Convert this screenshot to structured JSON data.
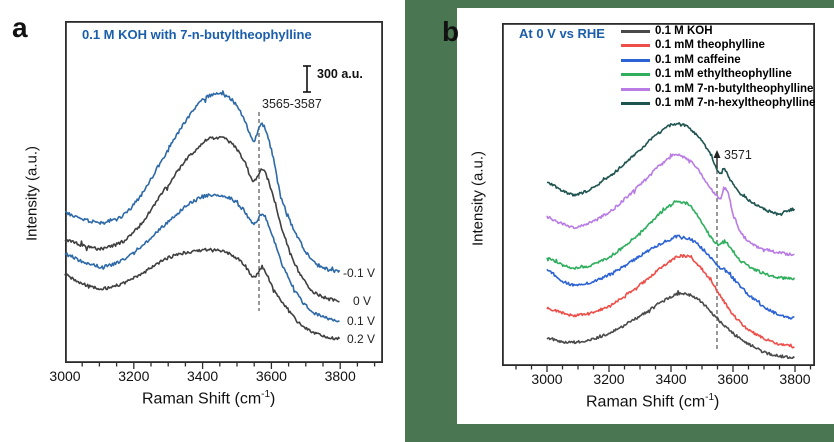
{
  "page": {
    "background": "#ffffff",
    "green_background": "#4a7751",
    "accent_blue": "#1b5eaa",
    "axis_color": "#2b2b2b"
  },
  "chart_data": [
    {
      "type": "line",
      "panel_label": "a",
      "title": "0.1 M KOH with 7-n-butyltheophylline",
      "xlabel_main": "Raman Shift (cm",
      "xlabel_sup": "-1",
      "xlabel_end": ")",
      "ylabel": "Intensity (a.u.)",
      "x_ticks": [
        "3000",
        "3200",
        "3400",
        "3600",
        "3800"
      ],
      "x_range_shown": [
        3000,
        3925
      ],
      "grid": "off",
      "scale_bar": {
        "label": "300 a.u."
      },
      "annotation": {
        "text": "3565-3587",
        "x_position_cm1": 3565
      },
      "note": "y-values are pixel offsets inside plot box (stacked spectra, arbitrary units)",
      "series": [
        {
          "name": "0.2 V",
          "color": "#3f3f3f",
          "noise": 1.5,
          "points": [
            [
              3000,
              254
            ],
            [
              3060,
              264
            ],
            [
              3120,
              267
            ],
            [
              3200,
              257
            ],
            [
              3300,
              237
            ],
            [
              3380,
              230
            ],
            [
              3430,
              229
            ],
            [
              3480,
              233
            ],
            [
              3520,
              243
            ],
            [
              3548,
              256
            ],
            [
              3575,
              247
            ],
            [
              3600,
              264
            ],
            [
              3630,
              281
            ],
            [
              3680,
              302
            ],
            [
              3730,
              313
            ],
            [
              3800,
              318
            ]
          ]
        },
        {
          "name": "0.1 V",
          "color": "#2e6aa8",
          "noise": 1.6,
          "points": [
            [
              3000,
              233
            ],
            [
              3060,
              242
            ],
            [
              3120,
              245
            ],
            [
              3200,
              231
            ],
            [
              3300,
              201
            ],
            [
              3380,
              179
            ],
            [
              3430,
              174
            ],
            [
              3480,
              177
            ],
            [
              3520,
              189
            ],
            [
              3548,
              203
            ],
            [
              3575,
              193
            ],
            [
              3600,
              213
            ],
            [
              3630,
              243
            ],
            [
              3680,
              276
            ],
            [
              3730,
              293
            ],
            [
              3800,
              300
            ]
          ]
        },
        {
          "name": "0 V",
          "color": "#3f3f3f",
          "noise": 1.7,
          "points": [
            [
              3000,
              219
            ],
            [
              3060,
              225
            ],
            [
              3120,
              227
            ],
            [
              3200,
              211
            ],
            [
              3300,
              164
            ],
            [
              3380,
              129
            ],
            [
              3430,
              117
            ],
            [
              3480,
              121
            ],
            [
              3520,
              139
            ],
            [
              3548,
              160
            ],
            [
              3575,
              148
            ],
            [
              3600,
              170
            ],
            [
              3630,
              209
            ],
            [
              3680,
              251
            ],
            [
              3730,
              273
            ],
            [
              3800,
              280
            ]
          ]
        },
        {
          "name": "-0.1 V",
          "color": "#2e6aa8",
          "noise": 1.8,
          "points": [
            [
              3000,
              192
            ],
            [
              3060,
              199
            ],
            [
              3120,
              201
            ],
            [
              3200,
              184
            ],
            [
              3300,
              129
            ],
            [
              3380,
              87
            ],
            [
              3430,
              74
            ],
            [
              3480,
              77
            ],
            [
              3520,
              97
            ],
            [
              3548,
              119
            ],
            [
              3572,
              103
            ],
            [
              3600,
              129
            ],
            [
              3630,
              179
            ],
            [
              3680,
              219
            ],
            [
              3730,
              243
            ],
            [
              3800,
              251
            ]
          ]
        }
      ]
    },
    {
      "type": "line",
      "panel_label": "b",
      "title": "At 0 V vs RHE",
      "xlabel_main": "Raman Shift (cm",
      "xlabel_sup": "-1",
      "xlabel_end": ")",
      "ylabel": "Intensity (a.u.)",
      "x_ticks": [
        "3000",
        "3200",
        "3400",
        "3600",
        "3800"
      ],
      "x_range_shown": [
        2855,
        3860
      ],
      "grid": "off",
      "annotation": {
        "text": "3571",
        "x_position_cm1": 3571
      },
      "legend_position": "top-right",
      "note": "y-values are pixel offsets inside plot box (stacked spectra, arbitrary units)",
      "series": [
        {
          "name": "0.1 M KOH",
          "color": "#4a4a4a",
          "noise": 1.3,
          "points": [
            [
              3000,
              315
            ],
            [
              3060,
              319
            ],
            [
              3120,
              318
            ],
            [
              3200,
              310
            ],
            [
              3300,
              293
            ],
            [
              3400,
              274
            ],
            [
              3440,
              271
            ],
            [
              3490,
              277
            ],
            [
              3550,
              296
            ],
            [
              3600,
              310
            ],
            [
              3650,
              321
            ],
            [
              3700,
              329
            ],
            [
              3750,
              333
            ],
            [
              3800,
              335
            ]
          ]
        },
        {
          "name": "0.1 mM theophylline",
          "color": "#ee4e49",
          "noise": 1.3,
          "points": [
            [
              3000,
              285
            ],
            [
              3050,
              290
            ],
            [
              3100,
              292
            ],
            [
              3200,
              283
            ],
            [
              3300,
              262
            ],
            [
              3400,
              238
            ],
            [
              3445,
              233
            ],
            [
              3480,
              240
            ],
            [
              3530,
              258
            ],
            [
              3570,
              278
            ],
            [
              3600,
              292
            ],
            [
              3650,
              307
            ],
            [
              3720,
              318
            ],
            [
              3800,
              324
            ]
          ]
        },
        {
          "name": "0.1 mM caffeine",
          "color": "#2b62d4",
          "noise": 1.4,
          "points": [
            [
              3000,
              247
            ],
            [
              3050,
              258
            ],
            [
              3100,
              262
            ],
            [
              3200,
              252
            ],
            [
              3300,
              233
            ],
            [
              3400,
              216
            ],
            [
              3440,
              214
            ],
            [
              3480,
              220
            ],
            [
              3530,
              235
            ],
            [
              3560,
              245
            ],
            [
              3575,
              247
            ],
            [
              3590,
              252
            ],
            [
              3620,
              262
            ],
            [
              3650,
              272
            ],
            [
              3700,
              284
            ],
            [
              3750,
              292
            ],
            [
              3800,
              295
            ]
          ]
        },
        {
          "name": "0.1 mM ethyltheophylline",
          "color": "#2fae5e",
          "noise": 1.4,
          "points": [
            [
              3000,
              235
            ],
            [
              3050,
              242
            ],
            [
              3100,
              245
            ],
            [
              3200,
              234
            ],
            [
              3300,
              210
            ],
            [
              3400,
              182
            ],
            [
              3435,
              179
            ],
            [
              3470,
              186
            ],
            [
              3520,
              210
            ],
            [
              3555,
              222
            ],
            [
              3571,
              218
            ],
            [
              3590,
              224
            ],
            [
              3620,
              237
            ],
            [
              3680,
              248
            ],
            [
              3740,
              254
            ],
            [
              3800,
              256
            ]
          ]
        },
        {
          "name": "0.1 mM 7-n-butyltheophylline",
          "color": "#b87ce4",
          "noise": 1.4,
          "points": [
            [
              3000,
              194
            ],
            [
              3050,
              201
            ],
            [
              3100,
              204
            ],
            [
              3200,
              189
            ],
            [
              3300,
              162
            ],
            [
              3400,
              134
            ],
            [
              3430,
              133
            ],
            [
              3470,
              140
            ],
            [
              3510,
              157
            ],
            [
              3545,
              172
            ],
            [
              3560,
              175
            ],
            [
              3571,
              165
            ],
            [
              3585,
              171
            ],
            [
              3600,
              192
            ],
            [
              3630,
              212
            ],
            [
              3680,
              224
            ],
            [
              3740,
              229
            ],
            [
              3800,
              232
            ]
          ]
        },
        {
          "name": "0.1 mM 7-n-hexyltheophylline",
          "color": "#1e5450",
          "noise": 1.3,
          "points": [
            [
              3000,
              159
            ],
            [
              3050,
              168
            ],
            [
              3100,
              171
            ],
            [
              3200,
              154
            ],
            [
              3300,
              127
            ],
            [
              3380,
              106
            ],
            [
              3425,
              101
            ],
            [
              3470,
              108
            ],
            [
              3520,
              127
            ],
            [
              3558,
              150
            ],
            [
              3571,
              146
            ],
            [
              3590,
              156
            ],
            [
              3620,
              170
            ],
            [
              3680,
              183
            ],
            [
              3740,
              190
            ],
            [
              3800,
              186
            ]
          ]
        }
      ]
    }
  ]
}
